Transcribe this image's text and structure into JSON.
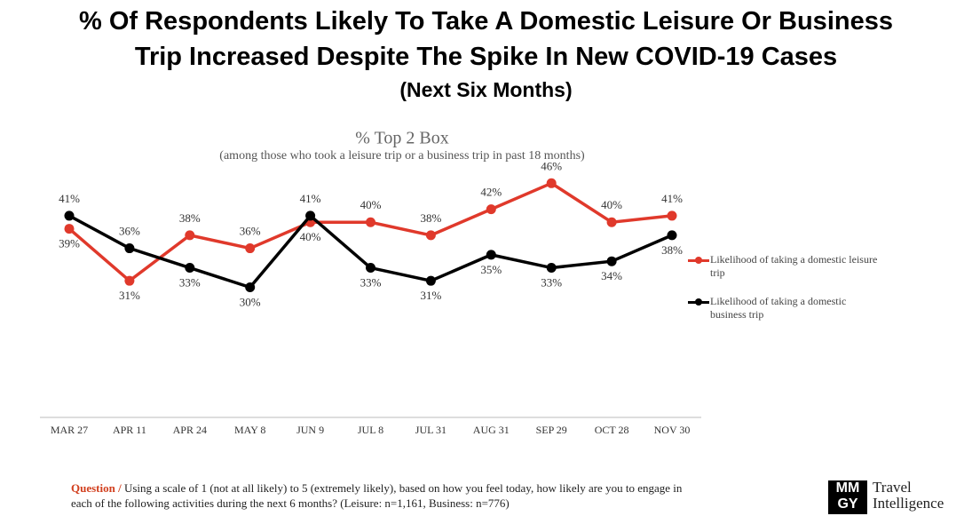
{
  "header": {
    "title_lines": [
      "% Of Respondents Likely To Take A Domestic Leisure Or Business",
      "Trip Increased Despite The Spike In New COVID-19 Cases"
    ],
    "subtitle": "(Next Six Months)"
  },
  "chart_data": {
    "type": "line",
    "title": "% Top 2 Box",
    "subtitle": "(among those who took a leisure trip or a business trip in past 18 months)",
    "categories": [
      "MAR 27",
      "APR 11",
      "APR 24",
      "MAY 8",
      "JUN 9",
      "JUL 8",
      "JUL 31",
      "AUG 31",
      "SEP 29",
      "OCT 28",
      "NOV 30"
    ],
    "series": [
      {
        "name": "Likelihood of taking a domestic leisure trip",
        "color": "#e0392b",
        "values": [
          39,
          31,
          38,
          36,
          40,
          40,
          38,
          42,
          46,
          40,
          41
        ],
        "value_labels": [
          "39%",
          "31%",
          "38%",
          "36%",
          "40%",
          "40%",
          "38%",
          "42%",
          "46%",
          "40%",
          "41%"
        ]
      },
      {
        "name": "Likelihood of taking a domestic business trip",
        "color": "#000000",
        "values": [
          41,
          36,
          33,
          30,
          41,
          33,
          31,
          35,
          33,
          34,
          38
        ],
        "value_labels": [
          "41%",
          "36%",
          "33%",
          "30%",
          "41%",
          "33%",
          "31%",
          "35%",
          "33%",
          "34%",
          "38%"
        ]
      }
    ],
    "ylim": [
      10,
      50
    ],
    "legend": "right"
  },
  "footnote": {
    "label": "Question /",
    "text": "Using a scale of 1 (not at all likely) to 5 (extremely likely), based on how you feel today, how likely are you to engage in each of the following activities during the next 6 months? (Leisure: n=1,161, Business: n=776)"
  },
  "logo": {
    "mark": [
      "MM",
      "GY"
    ],
    "text": [
      "Travel",
      "Intelligence"
    ]
  }
}
